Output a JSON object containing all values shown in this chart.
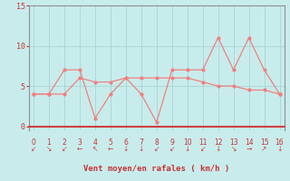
{
  "x": [
    0,
    1,
    2,
    3,
    4,
    5,
    6,
    7,
    8,
    9,
    10,
    11,
    12,
    13,
    14,
    15,
    16
  ],
  "y_rafales": [
    4,
    4,
    7,
    7,
    1,
    4,
    6,
    4,
    0.5,
    7,
    7,
    7,
    11,
    7,
    11,
    7,
    4
  ],
  "y_moyen": [
    4,
    4,
    4,
    6,
    5.5,
    5.5,
    6,
    6,
    6,
    6,
    6,
    5.5,
    5,
    5,
    4.5,
    4.5,
    4
  ],
  "xlim": [
    -0.3,
    16.3
  ],
  "ylim": [
    -0.5,
    15
  ],
  "yticks": [
    0,
    5,
    10,
    15
  ],
  "xticks": [
    0,
    1,
    2,
    3,
    4,
    5,
    6,
    7,
    8,
    9,
    10,
    11,
    12,
    13,
    14,
    15,
    16
  ],
  "xlabel": "Vent moyen/en rafales ( km/h )",
  "line_color": "#f08080",
  "bg_color": "#c8ecec",
  "grid_color": "#a8d4d4",
  "axis_color": "#d04040",
  "text_color": "#c83232",
  "red_line_color": "#d04040",
  "arrow_chars": [
    "↙",
    "↘",
    "↙",
    "←",
    "↖",
    "←",
    "↓",
    "↓",
    "↙",
    "↙",
    "↓",
    "↙",
    "↓",
    "↘",
    "→",
    "↗",
    "↓"
  ]
}
